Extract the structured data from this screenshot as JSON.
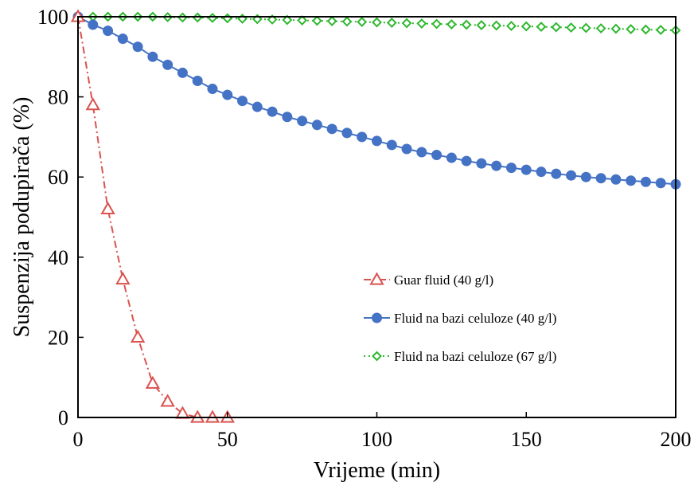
{
  "chart_data": {
    "type": "line",
    "xlabel": "Vrijeme (min)",
    "ylabel": "Suspenzija podupirača (%)",
    "xlim": [
      0,
      200
    ],
    "ylim": [
      0,
      100
    ],
    "xticks": [
      0,
      50,
      100,
      150,
      200
    ],
    "yticks": [
      0,
      20,
      40,
      60,
      80,
      100
    ],
    "grid": false,
    "legend_position": "lower-right",
    "series": [
      {
        "name": "Guar fluid (40 g/l)",
        "color": "#d9534f",
        "line_style": "dash-dot",
        "marker": "triangle-open",
        "x": [
          0,
          5,
          10,
          15,
          20,
          25,
          30,
          35,
          40,
          45,
          50
        ],
        "y": [
          100,
          78,
          52,
          34.5,
          20,
          8.5,
          4,
          1,
          0,
          0,
          0
        ]
      },
      {
        "name": "Fluid na bazi celuloze (40 g/l)",
        "color": "#4472c4",
        "line_style": "solid",
        "marker": "circle-filled",
        "x": [
          0,
          5,
          10,
          15,
          20,
          25,
          30,
          35,
          40,
          45,
          50,
          55,
          60,
          65,
          70,
          75,
          80,
          85,
          90,
          95,
          100,
          105,
          110,
          115,
          120,
          125,
          130,
          135,
          140,
          145,
          150,
          155,
          160,
          165,
          170,
          175,
          180,
          185,
          190,
          195,
          200
        ],
        "y": [
          100,
          98,
          96.5,
          94.5,
          92.5,
          90,
          88,
          86,
          84,
          82,
          80.5,
          79,
          77.5,
          76.3,
          75,
          74,
          73,
          72,
          71,
          70,
          69,
          68,
          67,
          66.2,
          65.5,
          64.8,
          64,
          63.4,
          62.8,
          62.3,
          61.8,
          61.3,
          60.8,
          60.4,
          60,
          59.7,
          59.4,
          59.1,
          58.8,
          58.5,
          58.2
        ]
      },
      {
        "name": "Fluid na bazi celuloze (67 g/l)",
        "color": "#2eb82e",
        "line_style": "dotted",
        "marker": "diamond-open",
        "x": [
          0,
          5,
          10,
          15,
          20,
          25,
          30,
          35,
          40,
          45,
          50,
          55,
          60,
          65,
          70,
          75,
          80,
          85,
          90,
          95,
          100,
          105,
          110,
          115,
          120,
          125,
          130,
          135,
          140,
          145,
          150,
          155,
          160,
          165,
          170,
          175,
          180,
          185,
          190,
          195,
          200
        ],
        "y": [
          100,
          100,
          100,
          100,
          100,
          100,
          99.9,
          99.8,
          99.8,
          99.7,
          99.6,
          99.5,
          99.4,
          99.3,
          99.2,
          99.1,
          99,
          98.9,
          98.8,
          98.7,
          98.6,
          98.5,
          98.4,
          98.3,
          98.2,
          98.1,
          98,
          97.9,
          97.8,
          97.7,
          97.6,
          97.5,
          97.4,
          97.3,
          97.2,
          97.1,
          97,
          96.9,
          96.8,
          96.7,
          96.6
        ]
      }
    ]
  }
}
